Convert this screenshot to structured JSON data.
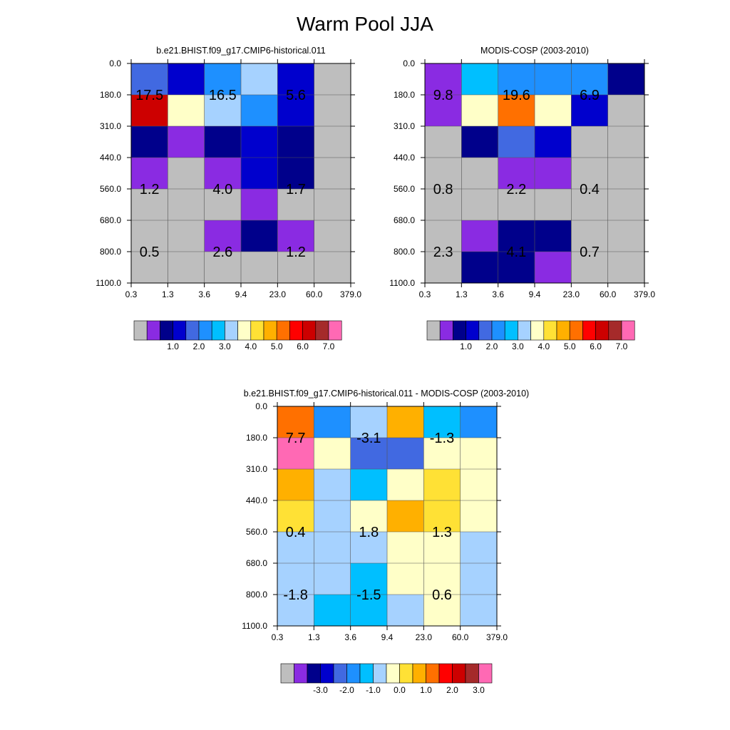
{
  "title": "Warm Pool JJA",
  "palettes": {
    "abs": [
      "#bebebe",
      "#8a2be2",
      "#00008b",
      "#0000cd",
      "#4169e1",
      "#1e90ff",
      "#00bfff",
      "#a6d2ff",
      "#ffffc8",
      "#ffe135",
      "#ffb000",
      "#ff7000",
      "#ff0000",
      "#cd0000",
      "#a52a2a",
      "#ff69b4"
    ],
    "diff": [
      "#bebebe",
      "#8a2be2",
      "#00008b",
      "#0000cd",
      "#4169e1",
      "#1e90ff",
      "#00bfff",
      "#a6d2ff",
      "#ffffc8",
      "#ffe135",
      "#ffb000",
      "#ff7000",
      "#ff0000",
      "#cd0000",
      "#a52a2a",
      "#ff69b4"
    ]
  },
  "chart_data": [
    {
      "type": "heatmap",
      "title": "b.e21.BHIST.f09_g17.CMIP6-historical.011",
      "x_ticks": [
        "0.3",
        "1.3",
        "3.6",
        "9.4",
        "23.0",
        "60.0",
        "379.0"
      ],
      "y_ticks": [
        "0.0",
        "180.0",
        "310.0",
        "440.0",
        "560.0",
        "680.0",
        "800.0",
        "1100.0"
      ],
      "cells": [
        [
          4,
          3,
          5,
          7,
          3,
          0
        ],
        [
          13,
          8,
          7,
          5,
          3,
          0
        ],
        [
          2,
          1,
          2,
          3,
          2,
          0
        ],
        [
          1,
          0,
          1,
          3,
          2,
          0
        ],
        [
          0,
          0,
          0,
          1,
          0,
          0
        ],
        [
          0,
          0,
          1,
          2,
          1,
          0
        ],
        [
          0,
          0,
          0,
          0,
          0,
          0
        ]
      ],
      "block_labels": [
        {
          "label": "17.5",
          "col": 0.5,
          "row": 1
        },
        {
          "label": "16.5",
          "col": 2.5,
          "row": 1
        },
        {
          "label": "5.6",
          "col": 4.5,
          "row": 1
        },
        {
          "label": "1.2",
          "col": 0.5,
          "row": 4
        },
        {
          "label": "4.0",
          "col": 2.5,
          "row": 4
        },
        {
          "label": "1.7",
          "col": 4.5,
          "row": 4
        },
        {
          "label": "0.5",
          "col": 0.5,
          "row": 6
        },
        {
          "label": "2.6",
          "col": 2.5,
          "row": 6
        },
        {
          "label": "1.2",
          "col": 4.5,
          "row": 6
        }
      ],
      "colorbar": {
        "palette": "abs",
        "labels": [
          "1.0",
          "2.0",
          "3.0",
          "4.0",
          "5.0",
          "6.0",
          "7.0"
        ]
      }
    },
    {
      "type": "heatmap",
      "title": "MODIS-COSP (2003-2010)",
      "x_ticks": [
        "0.3",
        "1.3",
        "3.6",
        "9.4",
        "23.0",
        "60.0",
        "379.0"
      ],
      "y_ticks": [
        "0.0",
        "180.0",
        "310.0",
        "440.0",
        "560.0",
        "680.0",
        "800.0",
        "1100.0"
      ],
      "cells": [
        [
          1,
          6,
          5,
          5,
          5,
          2
        ],
        [
          1,
          8,
          11,
          8,
          3,
          0
        ],
        [
          0,
          2,
          4,
          3,
          0,
          0
        ],
        [
          0,
          0,
          1,
          1,
          0,
          0
        ],
        [
          0,
          0,
          0,
          0,
          0,
          0
        ],
        [
          0,
          1,
          2,
          2,
          0,
          0
        ],
        [
          0,
          2,
          2,
          1,
          0,
          0
        ]
      ],
      "block_labels": [
        {
          "label": "9.8",
          "col": 0.5,
          "row": 1
        },
        {
          "label": "19.6",
          "col": 2.5,
          "row": 1
        },
        {
          "label": "6.9",
          "col": 4.5,
          "row": 1
        },
        {
          "label": "0.8",
          "col": 0.5,
          "row": 4
        },
        {
          "label": "2.2",
          "col": 2.5,
          "row": 4
        },
        {
          "label": "0.4",
          "col": 4.5,
          "row": 4
        },
        {
          "label": "2.3",
          "col": 0.5,
          "row": 6
        },
        {
          "label": "4.1",
          "col": 2.5,
          "row": 6
        },
        {
          "label": "0.7",
          "col": 4.5,
          "row": 6
        }
      ],
      "colorbar": {
        "palette": "abs",
        "labels": [
          "1.0",
          "2.0",
          "3.0",
          "4.0",
          "5.0",
          "6.0",
          "7.0"
        ]
      }
    },
    {
      "type": "heatmap",
      "title": "b.e21.BHIST.f09_g17.CMIP6-historical.011 - MODIS-COSP (2003-2010)",
      "x_ticks": [
        "0.3",
        "1.3",
        "3.6",
        "9.4",
        "23.0",
        "60.0",
        "379.0"
      ],
      "y_ticks": [
        "0.0",
        "180.0",
        "310.0",
        "440.0",
        "560.0",
        "680.0",
        "800.0",
        "1100.0"
      ],
      "cells": [
        [
          11,
          5,
          7,
          10,
          6,
          5
        ],
        [
          15,
          8,
          4,
          4,
          8,
          8
        ],
        [
          10,
          7,
          6,
          8,
          9,
          8
        ],
        [
          9,
          7,
          8,
          10,
          9,
          8
        ],
        [
          7,
          7,
          7,
          8,
          8,
          7
        ],
        [
          7,
          7,
          6,
          8,
          8,
          7
        ],
        [
          7,
          6,
          6,
          7,
          8,
          7
        ]
      ],
      "block_labels": [
        {
          "label": "7.7",
          "col": 0.5,
          "row": 1
        },
        {
          "label": "-3.1",
          "col": 2.5,
          "row": 1
        },
        {
          "label": "-1.3",
          "col": 4.5,
          "row": 1
        },
        {
          "label": "0.4",
          "col": 0.5,
          "row": 4
        },
        {
          "label": "1.8",
          "col": 2.5,
          "row": 4
        },
        {
          "label": "1.3",
          "col": 4.5,
          "row": 4
        },
        {
          "label": "-1.8",
          "col": 0.5,
          "row": 6
        },
        {
          "label": "-1.5",
          "col": 2.5,
          "row": 6
        },
        {
          "label": "0.6",
          "col": 4.5,
          "row": 6
        }
      ],
      "colorbar": {
        "palette": "diff",
        "labels": [
          "-3.0",
          "-2.0",
          "-1.0",
          "0.0",
          "1.0",
          "2.0",
          "3.0"
        ]
      }
    }
  ]
}
